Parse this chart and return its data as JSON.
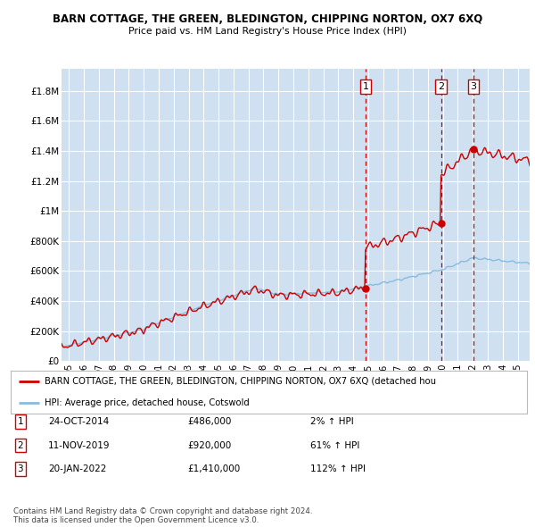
{
  "title": "BARN COTTAGE, THE GREEN, BLEDINGTON, CHIPPING NORTON, OX7 6XQ",
  "subtitle": "Price paid vs. HM Land Registry's House Price Index (HPI)",
  "ylabel_ticks": [
    "£0",
    "£200K",
    "£400K",
    "£600K",
    "£800K",
    "£1M",
    "£1.2M",
    "£1.4M",
    "£1.6M",
    "£1.8M"
  ],
  "ylabel_values": [
    0,
    200000,
    400000,
    600000,
    800000,
    1000000,
    1200000,
    1400000,
    1600000,
    1800000
  ],
  "ylim": [
    0,
    1950000
  ],
  "xlim_start": 1994.5,
  "xlim_end": 2025.8,
  "plot_bg_color": "#cfe0f0",
  "grid_color": "#ffffff",
  "sale_markers": [
    {
      "year": 2014.82,
      "price": 486000,
      "label": "1"
    },
    {
      "year": 2019.87,
      "price": 920000,
      "label": "2"
    },
    {
      "year": 2022.05,
      "price": 1410000,
      "label": "3"
    }
  ],
  "sale_vline_color": "#cc0000",
  "sale_vline_style": "--",
  "hpi_line_color": "#88bbdd",
  "price_line_color": "#cc0000",
  "legend_entries": [
    "BARN COTTAGE, THE GREEN, BLEDINGTON, CHIPPING NORTON, OX7 6XQ (detached hou",
    "HPI: Average price, detached house, Cotswold"
  ],
  "table_rows": [
    {
      "label": "1",
      "date": "24-OCT-2014",
      "price": "£486,000",
      "change": "2% ↑ HPI"
    },
    {
      "label": "2",
      "date": "11-NOV-2019",
      "price": "£920,000",
      "change": "61% ↑ HPI"
    },
    {
      "label": "3",
      "date": "20-JAN-2022",
      "price": "£1,410,000",
      "change": "112% ↑ HPI"
    }
  ],
  "footer": "Contains HM Land Registry data © Crown copyright and database right 2024.\nThis data is licensed under the Open Government Licence v3.0.",
  "x_tick_years": [
    1995,
    1996,
    1997,
    1998,
    1999,
    2000,
    2001,
    2002,
    2003,
    2004,
    2005,
    2006,
    2007,
    2008,
    2009,
    2010,
    2011,
    2012,
    2013,
    2014,
    2015,
    2016,
    2017,
    2018,
    2019,
    2020,
    2021,
    2022,
    2023,
    2024,
    2025
  ],
  "x_tick_labels": [
    "95",
    "96",
    "97",
    "98",
    "99",
    "00",
    "01",
    "02",
    "03",
    "04",
    "05",
    "06",
    "07",
    "08",
    "09",
    "10",
    "11",
    "12",
    "13",
    "14",
    "15",
    "16",
    "17",
    "18",
    "19",
    "20",
    "21",
    "22",
    "23",
    "24",
    "25"
  ]
}
